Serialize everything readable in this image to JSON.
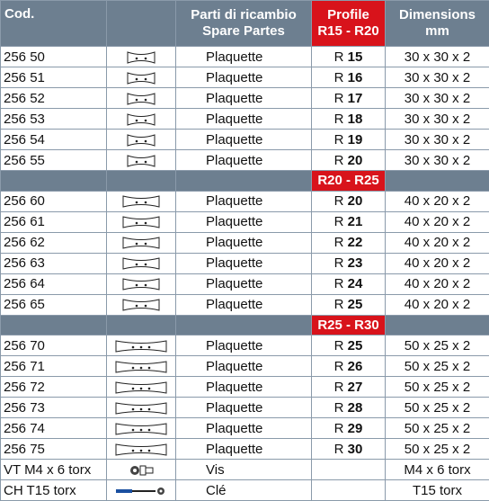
{
  "header": {
    "code": "Cod.",
    "description_line1": "Parti di ricambio",
    "description_line2": "Spare Partes",
    "profile_line1": "Profile",
    "profile_line2": "R15 - R20",
    "dimensions_line1": "Dimensions",
    "dimensions_line2": "mm"
  },
  "group_1": [
    {
      "code": "256 50",
      "desc": "Plaquette",
      "r": "R",
      "rv": "15",
      "dim": "30 x 30 x 2"
    },
    {
      "code": "256 51",
      "desc": "Plaquette",
      "r": "R",
      "rv": "16",
      "dim": "30 x 30 x 2"
    },
    {
      "code": "256 52",
      "desc": "Plaquette",
      "r": "R",
      "rv": "17",
      "dim": "30 x 30 x 2"
    },
    {
      "code": "256 53",
      "desc": "Plaquette",
      "r": "R",
      "rv": "18",
      "dim": "30 x 30 x 2"
    },
    {
      "code": "256 54",
      "desc": "Plaquette",
      "r": "R",
      "rv": "19",
      "dim": "30 x 30 x 2"
    },
    {
      "code": "256 55",
      "desc": "Plaquette",
      "r": "R",
      "rv": "20",
      "dim": "30 x 30 x 2"
    }
  ],
  "separator_2": "R20 - R25",
  "group_2": [
    {
      "code": "256 60",
      "desc": "Plaquette",
      "r": "R",
      "rv": "20",
      "dim": "40 x 20 x 2"
    },
    {
      "code": "256 61",
      "desc": "Plaquette",
      "r": "R",
      "rv": "21",
      "dim": "40 x 20 x 2"
    },
    {
      "code": "256 62",
      "desc": "Plaquette",
      "r": "R",
      "rv": "22",
      "dim": "40 x 20 x 2"
    },
    {
      "code": "256 63",
      "desc": "Plaquette",
      "r": "R",
      "rv": "23",
      "dim": "40 x 20 x 2"
    },
    {
      "code": "256 64",
      "desc": "Plaquette",
      "r": "R",
      "rv": "24",
      "dim": "40 x 20 x 2"
    },
    {
      "code": "256 65",
      "desc": "Plaquette",
      "r": "R",
      "rv": "25",
      "dim": "40 x 20 x 2"
    }
  ],
  "separator_3": "R25 - R30",
  "group_3": [
    {
      "code": "256 70",
      "desc": "Plaquette",
      "r": "R",
      "rv": "25",
      "dim": "50 x 25 x 2"
    },
    {
      "code": "256 71",
      "desc": "Plaquette",
      "r": "R",
      "rv": "26",
      "dim": "50 x 25 x 2"
    },
    {
      "code": "256 72",
      "desc": "Plaquette",
      "r": "R",
      "rv": "27",
      "dim": "50 x 25 x 2"
    },
    {
      "code": "256 73",
      "desc": "Plaquette",
      "r": "R",
      "rv": "28",
      "dim": "50 x 25 x 2"
    },
    {
      "code": "256 74",
      "desc": "Plaquette",
      "r": "R",
      "rv": "29",
      "dim": "50 x 25 x 2"
    },
    {
      "code": "256 75",
      "desc": "Plaquette",
      "r": "R",
      "rv": "30",
      "dim": "50 x 25 x 2"
    }
  ],
  "extras": [
    {
      "code": "VT M4 x 6 torx",
      "icon": "screw-icon",
      "desc": "Vis",
      "dim": "M4 x 6 torx"
    },
    {
      "code": "CH T15 torx",
      "icon": "torx-key-icon",
      "desc": "Clé",
      "dim": "T15 torx"
    }
  ],
  "colors": {
    "header_bg": "#6d7f90",
    "profile_accent": "#d8131b"
  }
}
